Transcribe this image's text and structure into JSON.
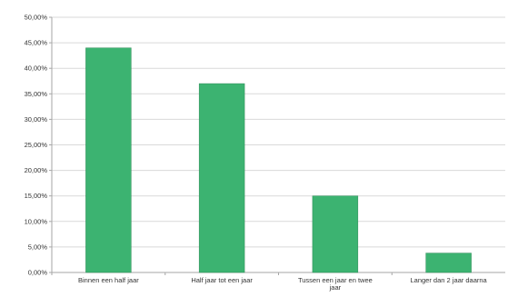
{
  "chart_data": {
    "type": "bar",
    "categories": [
      [
        "Binnen een half jaar"
      ],
      [
        "Half jaar tot een jaar"
      ],
      [
        "Tussen een jaar en twee",
        "jaar"
      ],
      [
        "Langer dan 2 jaar daarna"
      ]
    ],
    "values": [
      44.0,
      37.0,
      15.0,
      3.8
    ],
    "ylim": [
      0,
      50
    ],
    "y_ticks": [
      "0,00%",
      "5,00%",
      "10,00%",
      "15,00%",
      "20,00%",
      "25,00%",
      "30,00%",
      "35,00%",
      "40,00%",
      "45,00%",
      "50,00%"
    ],
    "title": "",
    "xlabel": "",
    "ylabel": "",
    "grid": true,
    "legend": "none",
    "bar_color": "#3cb371",
    "bar_edge_color": "#2e8b57"
  }
}
